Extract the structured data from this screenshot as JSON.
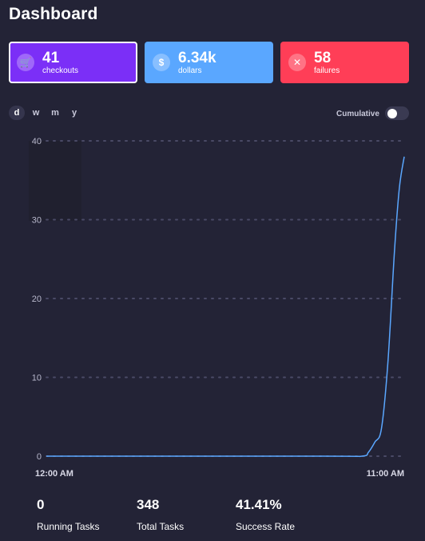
{
  "header": {
    "title": "Dashboard"
  },
  "cards": [
    {
      "value": "41",
      "label": "checkouts",
      "icon": "cart-icon",
      "color": "#7b2ff7",
      "glyph": "🛒"
    },
    {
      "value": "6.34k",
      "label": "dollars",
      "icon": "dollar-icon",
      "color": "#5aa7ff",
      "glyph": "$"
    },
    {
      "value": "58",
      "label": "failures",
      "icon": "x-icon",
      "color": "#ff3e57",
      "glyph": "✕"
    }
  ],
  "ranges": [
    {
      "label": "d",
      "active": true
    },
    {
      "label": "w",
      "active": false
    },
    {
      "label": "m",
      "active": false
    },
    {
      "label": "y",
      "active": false
    }
  ],
  "cumulative": {
    "label": "Cumulative",
    "enabled": false
  },
  "chart_data": {
    "type": "line",
    "yticks": [
      "0",
      "10",
      "20",
      "30",
      "40"
    ],
    "ylim": [
      0,
      40
    ],
    "x_labels": [
      "12:00 AM",
      "11:00 AM"
    ],
    "xlim": [
      0,
      11
    ],
    "series": [
      {
        "points": [
          [
            0,
            0
          ],
          [
            8.5,
            0
          ],
          [
            9.7,
            0
          ],
          [
            9.9,
            0.5
          ],
          [
            10.1,
            1.8
          ],
          [
            10.3,
            3.5
          ],
          [
            10.5,
            12
          ],
          [
            10.7,
            26
          ],
          [
            10.85,
            34
          ],
          [
            11,
            38
          ]
        ]
      }
    ],
    "grid": true,
    "line_color": "#5aa7ff"
  },
  "stats": [
    {
      "value": "0",
      "label": "Running Tasks"
    },
    {
      "value": "348",
      "label": "Total Tasks"
    },
    {
      "value": "41.41%",
      "label": "Success Rate"
    }
  ]
}
